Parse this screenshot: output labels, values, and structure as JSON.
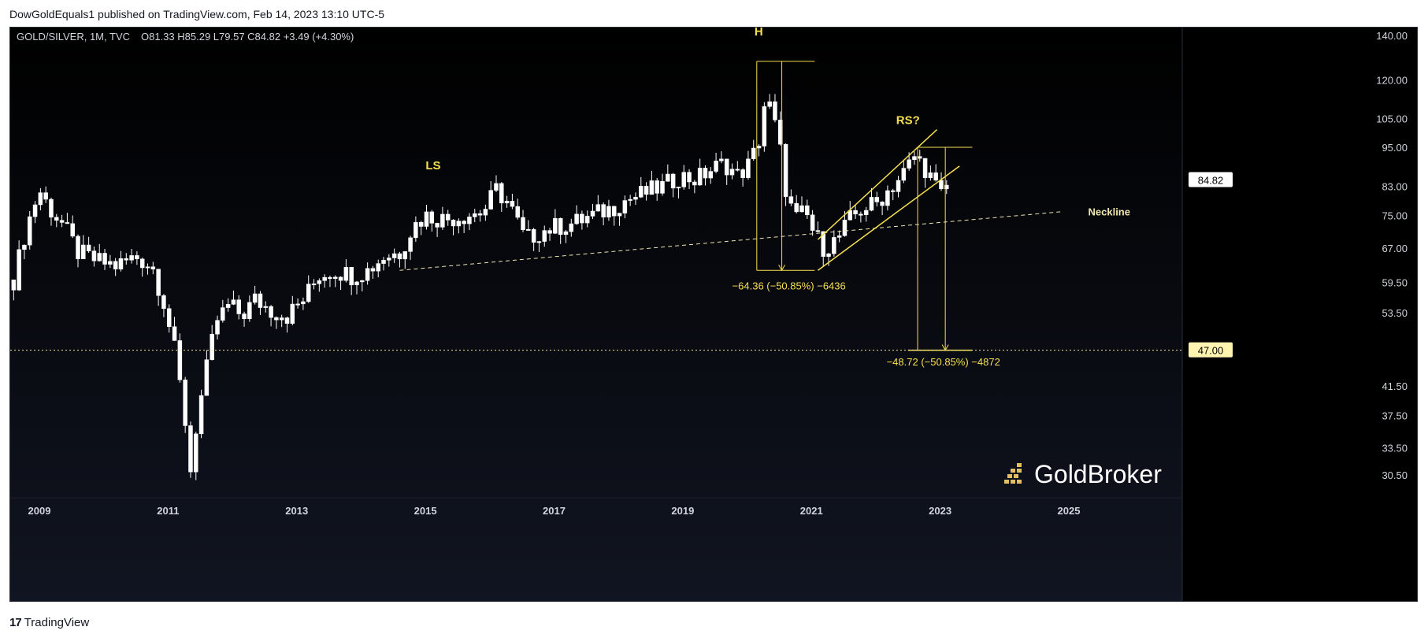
{
  "header": {
    "publish_text": "DowGoldEquals1 published on TradingView.com, Feb 14, 2023 13:10 UTC-5"
  },
  "footer": {
    "logo_text": "TradingView"
  },
  "colors": {
    "background": "#000000",
    "candle": "#ffffff",
    "annotation": "#f5e050",
    "neckline": "#f0e6b0",
    "axis_text": "#d1d4dc"
  },
  "chart_data": {
    "type": "candlestick",
    "title": "GOLD/SILVER, 1M, TVC",
    "ohlc_label": "O81.33  H85.29  L79.57  C84.82  +3.49 (+4.30%)",
    "scale": "log",
    "y_ticks": [
      140.0,
      120.0,
      105.0,
      95.0,
      83.0,
      75.0,
      67.0,
      59.5,
      53.5,
      47.0,
      41.5,
      37.5,
      33.5,
      30.5
    ],
    "y_tick_labels": [
      "140.00",
      "120.00",
      "105.00",
      "95.00",
      "83.00",
      "75.00",
      "67.00",
      "59.50",
      "53.50",
      "",
      "41.50",
      "37.50",
      "33.50",
      "30.50"
    ],
    "x_ticks": [
      "2009",
      "2011",
      "2013",
      "2015",
      "2017",
      "2019",
      "2021",
      "2023",
      "2025"
    ],
    "last_price": "84.82",
    "target_price": "47.00",
    "ylim": [
      27.5,
      150
    ],
    "xlim": [
      2008.55,
      2027.0
    ],
    "series_points": [
      [
        2008.6,
        60
      ],
      [
        2008.8,
        72
      ],
      [
        2009.0,
        82
      ],
      [
        2009.15,
        77
      ],
      [
        2009.35,
        73
      ],
      [
        2009.6,
        66
      ],
      [
        2009.9,
        64
      ],
      [
        2010.2,
        63
      ],
      [
        2010.5,
        65
      ],
      [
        2010.75,
        63
      ],
      [
        2010.95,
        55
      ],
      [
        2011.1,
        47
      ],
      [
        2011.25,
        38
      ],
      [
        2011.35,
        31
      ],
      [
        2011.45,
        37
      ],
      [
        2011.6,
        44
      ],
      [
        2011.75,
        52
      ],
      [
        2011.95,
        55
      ],
      [
        2012.15,
        53
      ],
      [
        2012.35,
        56
      ],
      [
        2012.6,
        54
      ],
      [
        2012.85,
        53
      ],
      [
        2013.1,
        56
      ],
      [
        2013.35,
        61
      ],
      [
        2013.6,
        62
      ],
      [
        2013.85,
        61
      ],
      [
        2014.1,
        62
      ],
      [
        2014.35,
        65
      ],
      [
        2014.6,
        66
      ],
      [
        2014.8,
        72
      ],
      [
        2015.0,
        75
      ],
      [
        2015.3,
        74
      ],
      [
        2015.6,
        75
      ],
      [
        2015.9,
        76
      ],
      [
        2016.1,
        82
      ],
      [
        2016.3,
        78
      ],
      [
        2016.55,
        69
      ],
      [
        2016.8,
        71
      ],
      [
        2017.0,
        72
      ],
      [
        2017.3,
        73
      ],
      [
        2017.6,
        75
      ],
      [
        2017.9,
        77
      ],
      [
        2018.1,
        79
      ],
      [
        2018.4,
        81
      ],
      [
        2018.7,
        83
      ],
      [
        2018.95,
        86
      ],
      [
        2019.2,
        85
      ],
      [
        2019.45,
        88
      ],
      [
        2019.65,
        90
      ],
      [
        2019.85,
        86
      ],
      [
        2020.05,
        90
      ],
      [
        2020.18,
        97
      ],
      [
        2020.28,
        112
      ],
      [
        2020.38,
        108
      ],
      [
        2020.5,
        96
      ],
      [
        2020.62,
        80
      ],
      [
        2020.75,
        74
      ],
      [
        2020.9,
        76
      ],
      [
        2021.05,
        70
      ],
      [
        2021.2,
        67
      ],
      [
        2021.4,
        69
      ],
      [
        2021.6,
        74
      ],
      [
        2021.8,
        77
      ],
      [
        2022.0,
        78
      ],
      [
        2022.2,
        82
      ],
      [
        2022.4,
        86
      ],
      [
        2022.6,
        92
      ],
      [
        2022.75,
        89
      ],
      [
        2022.9,
        84
      ],
      [
        2023.0,
        80
      ],
      [
        2023.12,
        84
      ]
    ],
    "annotations": {
      "ls_label": "LS",
      "h_label": "H",
      "rs_label": "RS?",
      "neckline_label": "Neckline",
      "measure_1_label": "−64.36 (−50.85%) −6436",
      "measure_2_label": "−48.72 (−50.85%) −4872"
    }
  },
  "watermark": {
    "brand": "GoldBroker"
  }
}
